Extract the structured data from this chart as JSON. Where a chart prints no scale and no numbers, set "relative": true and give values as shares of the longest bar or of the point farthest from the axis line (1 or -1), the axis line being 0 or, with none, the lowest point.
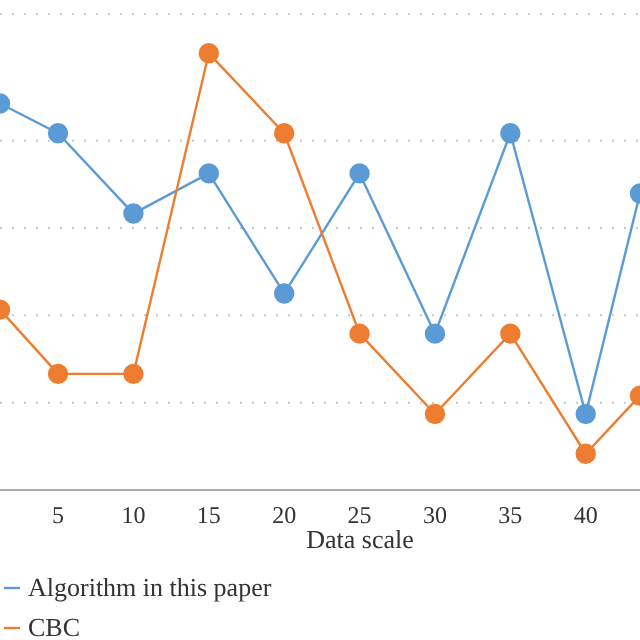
{
  "chart_data": {
    "type": "line",
    "relative": true,
    "xlabel": "Data scale",
    "x": [
      1.15,
      5,
      10,
      15,
      20,
      25,
      30,
      35,
      40,
      43.6
    ],
    "xlim": [
      1.15,
      43.6
    ],
    "xticks": [
      5,
      10,
      15,
      20,
      25,
      30,
      35,
      40
    ],
    "series": [
      {
        "name": "Algorithm in this paper",
        "color": "#5b9bd5",
        "values": [
          0.885,
          0.817,
          0.633,
          0.725,
          0.45,
          0.725,
          0.358,
          0.817,
          0.174,
          0.679
        ]
      },
      {
        "name": "CBC",
        "color": "#ed7d31",
        "values": [
          0.413,
          0.266,
          0.266,
          1,
          0.817,
          0.358,
          0.174,
          0.358,
          0.083,
          0.216
        ]
      }
    ],
    "grid": "y",
    "marker": "circle",
    "line_style": "solid",
    "legend": "bottom left"
  }
}
